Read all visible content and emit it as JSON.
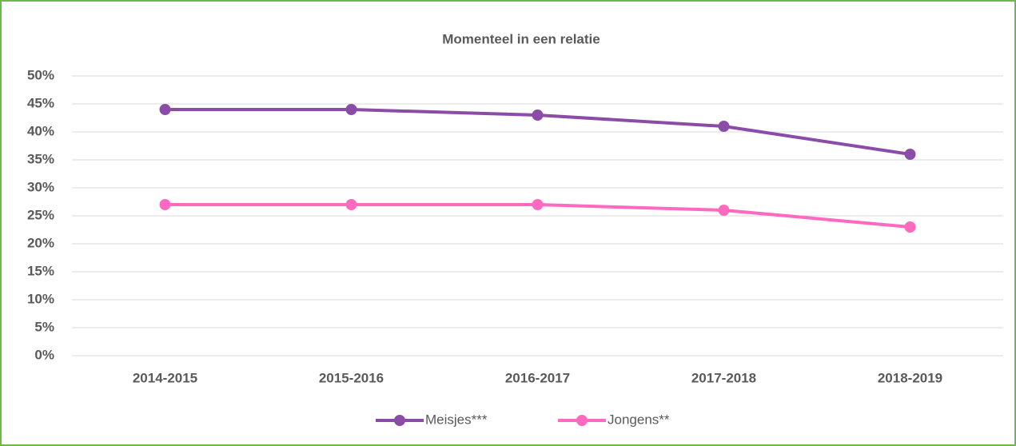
{
  "chart_data": {
    "type": "line",
    "title": "Momenteel in een relatie",
    "categories": [
      "2014-2015",
      "2015-2016",
      "2016-2017",
      "2017-2018",
      "2018-2019"
    ],
    "series": [
      {
        "name": "Meisjes***",
        "color": "#8b4ca8",
        "values": [
          44,
          44,
          43,
          41,
          36
        ]
      },
      {
        "name": "Jongens**",
        "color": "#ff69c0",
        "values": [
          27,
          27,
          27,
          26,
          23
        ]
      }
    ],
    "ylim": [
      0,
      50
    ],
    "yticks": [
      {
        "value": 0,
        "label": "0%"
      },
      {
        "value": 5,
        "label": "5%"
      },
      {
        "value": 10,
        "label": "10%"
      },
      {
        "value": 15,
        "label": "15%"
      },
      {
        "value": 20,
        "label": "20%"
      },
      {
        "value": 25,
        "label": "25%"
      },
      {
        "value": 30,
        "label": "30%"
      },
      {
        "value": 35,
        "label": "35%"
      },
      {
        "value": 40,
        "label": "40%"
      },
      {
        "value": 45,
        "label": "45%"
      },
      {
        "value": 50,
        "label": "50%"
      }
    ],
    "grid": true,
    "legend": "bottom"
  }
}
